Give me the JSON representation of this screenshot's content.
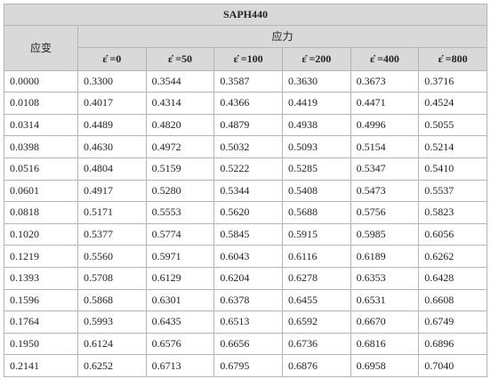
{
  "table": {
    "title": "SAPH440",
    "strain_header": "应变",
    "stress_header": "应力",
    "rate_headers": [
      "ε̇ =0",
      "ε̇ =50",
      "ε̇ =100",
      "ε̇ =200",
      "ε̇ =400",
      "ε̇ =800"
    ],
    "rows": [
      [
        "0.0000",
        "0.3300",
        "0.3544",
        "0.3587",
        "0.3630",
        "0.3673",
        "0.3716"
      ],
      [
        "0.0108",
        "0.4017",
        "0.4314",
        "0.4366",
        "0.4419",
        "0.4471",
        "0.4524"
      ],
      [
        "0.0314",
        "0.4489",
        "0.4820",
        "0.4879",
        "0.4938",
        "0.4996",
        "0.5055"
      ],
      [
        "0.0398",
        "0.4630",
        "0.4972",
        "0.5032",
        "0.5093",
        "0.5154",
        "0.5214"
      ],
      [
        "0.0516",
        "0.4804",
        "0.5159",
        "0.5222",
        "0.5285",
        "0.5347",
        "0.5410"
      ],
      [
        "0.0601",
        "0.4917",
        "0.5280",
        "0.5344",
        "0.5408",
        "0.5473",
        "0.5537"
      ],
      [
        "0.0818",
        "0.5171",
        "0.5553",
        "0.5620",
        "0.5688",
        "0.5756",
        "0.5823"
      ],
      [
        "0.1020",
        "0.5377",
        "0.5774",
        "0.5845",
        "0.5915",
        "0.5985",
        "0.6056"
      ],
      [
        "0.1219",
        "0.5560",
        "0.5971",
        "0.6043",
        "0.6116",
        "0.6189",
        "0.6262"
      ],
      [
        "0.1393",
        "0.5708",
        "0.6129",
        "0.6204",
        "0.6278",
        "0.6353",
        "0.6428"
      ],
      [
        "0.1596",
        "0.5868",
        "0.6301",
        "0.6378",
        "0.6455",
        "0.6531",
        "0.6608"
      ],
      [
        "0.1764",
        "0.5993",
        "0.6435",
        "0.6513",
        "0.6592",
        "0.6670",
        "0.6749"
      ],
      [
        "0.1950",
        "0.6124",
        "0.6576",
        "0.6656",
        "0.6736",
        "0.6816",
        "0.6896"
      ],
      [
        "0.2141",
        "0.6252",
        "0.6713",
        "0.6795",
        "0.6876",
        "0.6958",
        "0.7040"
      ]
    ]
  }
}
